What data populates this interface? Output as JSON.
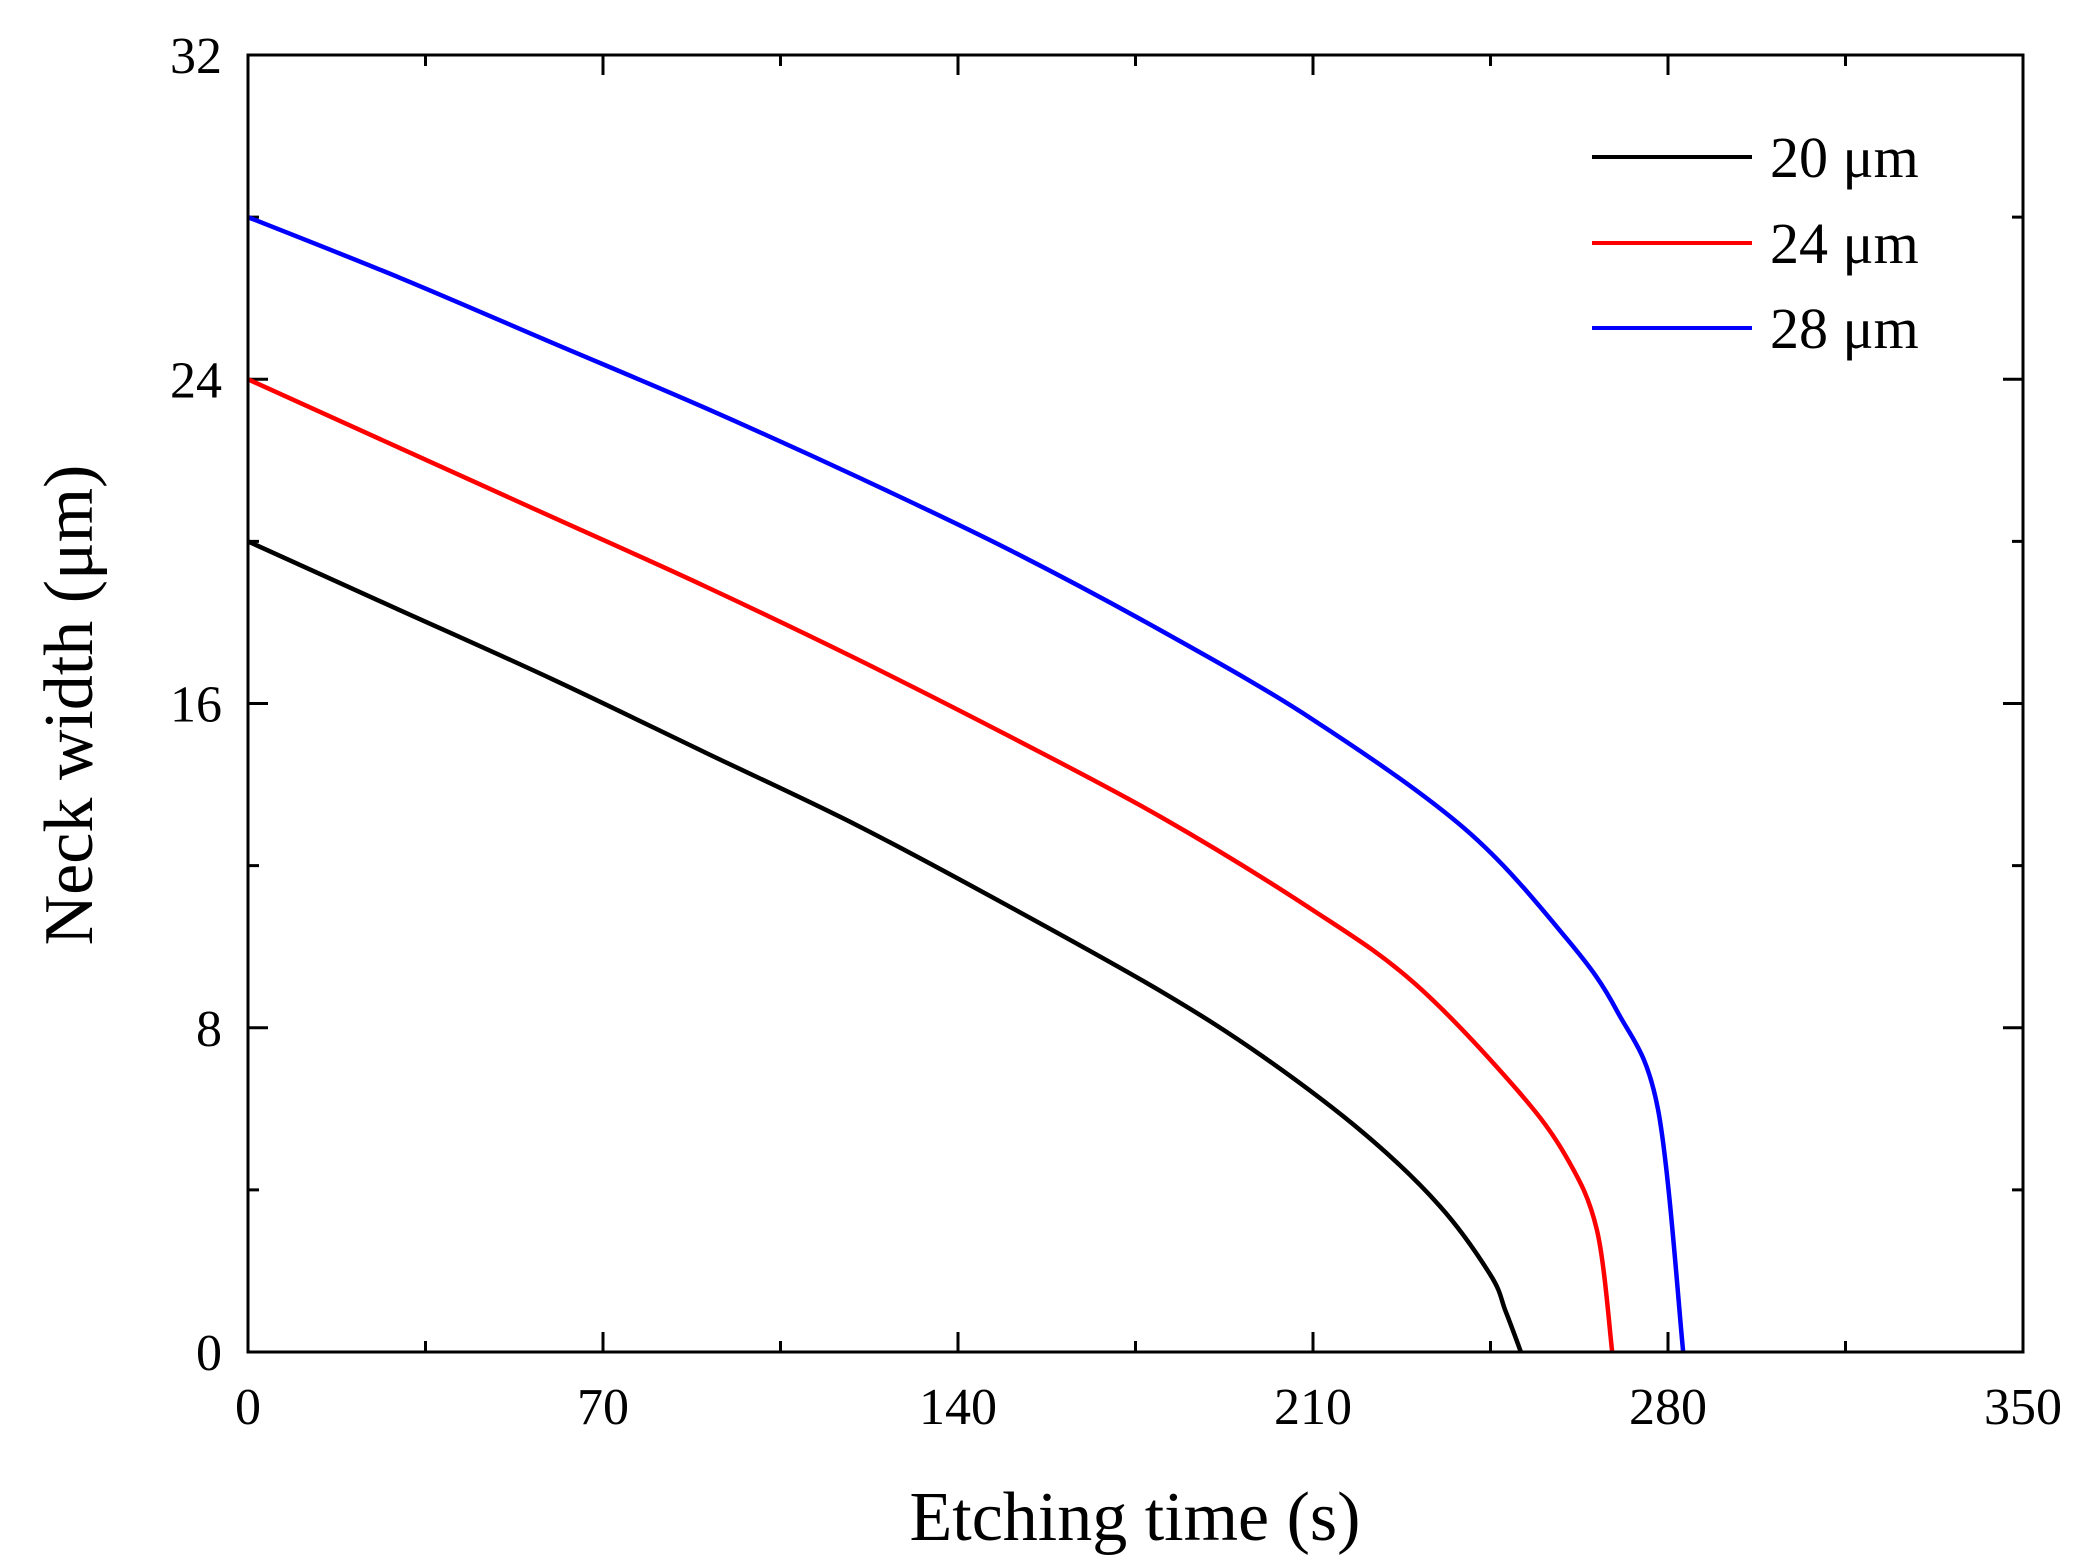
{
  "chart_data": {
    "type": "line",
    "title": "",
    "xlabel": "Etching time (s)",
    "ylabel": "Neck width (μm)",
    "xlim": [
      0,
      350
    ],
    "ylim": [
      0,
      32
    ],
    "xticks": [
      0,
      70,
      140,
      210,
      280,
      350
    ],
    "xtick_labels": [
      "0",
      "70",
      "140",
      "210",
      "280",
      "350"
    ],
    "yticks": [
      0,
      8,
      16,
      24,
      32
    ],
    "ytick_labels": [
      "0",
      "8",
      "16",
      "24",
      "32"
    ],
    "x_minor_step": 35,
    "y_minor_step": 4,
    "grid": false,
    "legend_position": "top-right",
    "series": [
      {
        "name": "20 μm",
        "color": "#000000",
        "x": [
          0,
          30,
          60,
          90,
          120,
          150,
          180,
          200,
          220,
          235,
          245,
          248,
          251
        ],
        "y": [
          20.0,
          18.3,
          16.6,
          14.8,
          13.0,
          11.0,
          8.9,
          7.3,
          5.4,
          3.6,
          1.9,
          1.0,
          0
        ]
      },
      {
        "name": "24 μm",
        "color": "#ff0000",
        "x": [
          0,
          30,
          60,
          90,
          120,
          150,
          180,
          210,
          230,
          250,
          260,
          266,
          269
        ],
        "y": [
          24.0,
          22.3,
          20.6,
          18.9,
          17.1,
          15.2,
          13.2,
          10.9,
          9.1,
          6.5,
          4.8,
          3.0,
          0
        ]
      },
      {
        "name": "28 μm",
        "color": "#0000ff",
        "x": [
          0,
          30,
          60,
          90,
          120,
          150,
          180,
          210,
          240,
          260,
          270,
          278,
          283
        ],
        "y": [
          28.0,
          26.5,
          24.9,
          23.3,
          21.6,
          19.8,
          17.8,
          15.6,
          12.9,
          10.2,
          8.4,
          6.0,
          0
        ]
      }
    ]
  }
}
